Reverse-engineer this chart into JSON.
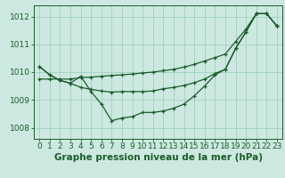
{
  "bg_color": "#cce8e0",
  "grid_color": "#99ccbb",
  "line_color": "#1a5c2a",
  "title": "Graphe pression niveau de la mer (hPa)",
  "ylim": [
    1007.6,
    1012.4
  ],
  "xlim": [
    -0.5,
    23.5
  ],
  "yticks": [
    1008,
    1009,
    1010,
    1011,
    1012
  ],
  "xticks": [
    0,
    1,
    2,
    3,
    4,
    5,
    6,
    7,
    8,
    9,
    10,
    11,
    12,
    13,
    14,
    15,
    16,
    17,
    18,
    19,
    20,
    21,
    22,
    23
  ],
  "series1": [
    1010.2,
    1009.9,
    1009.7,
    1009.6,
    1009.85,
    1009.3,
    1008.85,
    1008.25,
    1008.35,
    1008.4,
    1008.55,
    1008.55,
    1008.6,
    1008.7,
    1008.85,
    1009.15,
    1009.5,
    1009.9,
    1010.1,
    1010.85,
    1011.45,
    1012.1,
    1012.1,
    1011.65
  ],
  "series2": [
    1009.75,
    1009.75,
    1009.75,
    1009.75,
    1009.8,
    1009.82,
    1009.85,
    1009.88,
    1009.9,
    1009.93,
    1009.97,
    1010.0,
    1010.05,
    1010.1,
    1010.18,
    1010.28,
    1010.4,
    1010.52,
    1010.65,
    1011.1,
    1011.55,
    1012.1,
    1012.1,
    1011.65
  ],
  "series3": [
    1010.2,
    1009.9,
    1009.7,
    1009.6,
    1009.45,
    1009.38,
    1009.32,
    1009.28,
    1009.3,
    1009.3,
    1009.3,
    1009.32,
    1009.4,
    1009.45,
    1009.52,
    1009.62,
    1009.75,
    1009.95,
    1010.1,
    1010.85,
    1011.45,
    1012.1,
    1012.1,
    1011.65
  ],
  "title_fontsize": 7.5,
  "tick_fontsize": 6.5
}
